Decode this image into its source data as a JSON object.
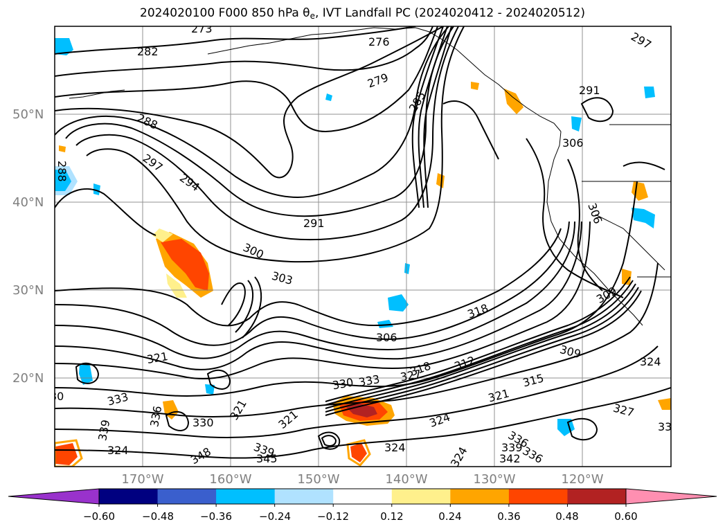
{
  "title": {
    "prefix": "2024020100 F000 850 hPa θ",
    "sub": "e",
    "suffix": ", IVT Landfall PC (2024020412 - 2024020512)"
  },
  "lat_labels": [
    "50°N",
    "40°N",
    "30°N",
    "20°N"
  ],
  "lon_labels": [
    "170°W",
    "160°W",
    "150°W",
    "140°W",
    "130°W",
    "120°W"
  ],
  "colorbar": {
    "labels": [
      "−0.60",
      "−0.48",
      "−0.36",
      "−0.24",
      "−0.12",
      "0.12",
      "0.24",
      "0.36",
      "0.48",
      "0.60"
    ],
    "colors": [
      "#9932cc",
      "#000080",
      "#3a5fcd",
      "#00bfff",
      "#b0e2ff",
      "#ffffff",
      "#fff08c",
      "#ffa500",
      "#ff4500",
      "#b22222",
      "#ff8fb1"
    ]
  },
  "contour_labels": [
    "273",
    "276",
    "279",
    "282",
    "285",
    "288",
    "288",
    "291",
    "291",
    "294",
    "297",
    "297",
    "300",
    "303",
    "306",
    "306",
    "306",
    "309",
    "309",
    "312",
    "315",
    "318",
    "318",
    "321",
    "321",
    "321",
    "321",
    "324",
    "324",
    "324",
    "324",
    "327",
    "327",
    "330",
    "330",
    "333",
    "333",
    "336",
    "336",
    "336",
    "339",
    "339",
    "339",
    "342",
    "345",
    "348",
    "324",
    "330",
    "33",
    "30"
  ]
}
